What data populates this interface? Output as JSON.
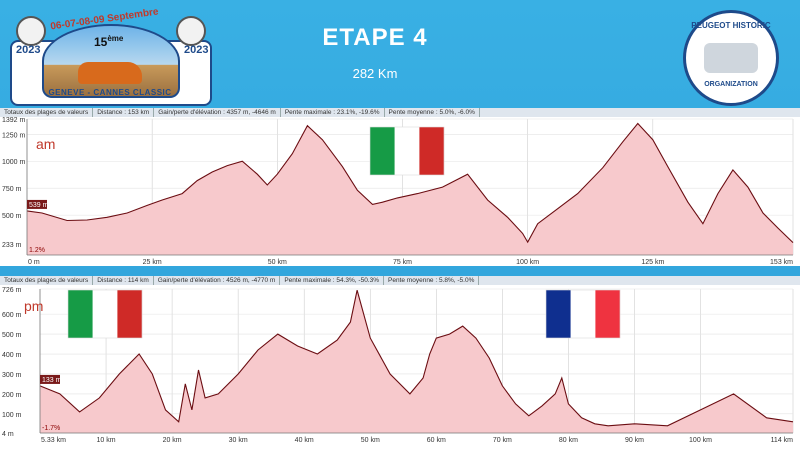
{
  "page": {
    "title": "ETAPE 4",
    "subtitle": "282 Km"
  },
  "logo_left": {
    "dates": "06-07-08-09 Septembre",
    "edition": "15",
    "edition_suffix": "ème",
    "year": "2023",
    "route": "GENEVE - CANNES CLASSIC"
  },
  "logo_right": {
    "top_text": "PEUGEOT HISTORIC",
    "bottom_text": "ORGANIZATION"
  },
  "colors": {
    "profile_line": "#6b0d12",
    "profile_fill": "#f7c9cc",
    "flag_green": "#169b46",
    "flag_white": "#ffffff",
    "flag_red": "#cf2a27",
    "flag_blue": "#0f2f8f",
    "flag_fr_red": "#ef3340"
  },
  "chart_data": [
    {
      "type": "area",
      "label": "am",
      "stats": [
        "Totaux des plages de valeurs",
        "Distance : 153 km",
        "Gain/perte d'élévation : 4357 m, -4646 m",
        "Pente maximale : 23.1%, -19.6%",
        "Pente moyenne : 5.0%, -6.0%"
      ],
      "x_unit": "km",
      "xlim": [
        0,
        153
      ],
      "ylim": [
        130,
        1392
      ],
      "y_ticks": [
        "1392 m",
        "1250 m",
        "1000 m",
        "750 m",
        "500 m",
        "233 m"
      ],
      "y_tick_values": [
        1392,
        1250,
        1000,
        750,
        500,
        233
      ],
      "x_ticks": [
        "0 m",
        "25 km",
        "50 km",
        "75 km",
        "100 km",
        "125 km",
        "153 km"
      ],
      "x_tick_values": [
        0,
        25,
        50,
        75,
        100,
        125,
        153
      ],
      "start_marker": "539 m",
      "slope_marker": "1.2%",
      "flags": [
        "italy"
      ],
      "x": [
        0,
        3,
        8,
        12,
        16,
        20,
        24,
        27,
        31,
        34,
        37,
        40,
        43,
        46,
        48,
        50,
        53,
        56,
        59,
        63,
        66,
        69,
        71,
        74,
        78,
        83,
        88,
        92,
        96,
        99,
        100,
        102,
        106,
        110,
        115,
        119,
        122,
        125,
        128,
        132,
        135,
        138,
        141,
        144,
        147,
        150,
        153
      ],
      "y": [
        539,
        520,
        450,
        455,
        480,
        520,
        590,
        640,
        700,
        820,
        900,
        960,
        1000,
        880,
        780,
        880,
        1070,
        1330,
        1200,
        950,
        730,
        600,
        620,
        660,
        700,
        760,
        880,
        640,
        480,
        330,
        250,
        420,
        560,
        700,
        940,
        1180,
        1350,
        1200,
        950,
        620,
        420,
        700,
        920,
        760,
        520,
        380,
        245
      ]
    },
    {
      "type": "area",
      "label": "pm",
      "stats": [
        "Totaux des plages de valeurs",
        "Distance : 114 km",
        "Gain/perte d'élévation : 4526 m, -4770 m",
        "Pente maximale : 54.3%, -50.3%",
        "Pente moyenne : 5.8%, -5.0%"
      ],
      "x_unit": "km",
      "xlim": [
        0,
        114
      ],
      "ylim": [
        4,
        726
      ],
      "y_ticks": [
        "726 m",
        "600 m",
        "500 m",
        "400 m",
        "300 m",
        "200 m",
        "100 m",
        "4 m"
      ],
      "y_tick_values": [
        726,
        600,
        500,
        400,
        300,
        200,
        100,
        4
      ],
      "x_ticks": [
        "5.33 km",
        "10 km",
        "20 km",
        "30 km",
        "40 km",
        "50 km",
        "60 km",
        "70 km",
        "80 km",
        "90 km",
        "100 km",
        "114 km"
      ],
      "x_tick_values": [
        5.33,
        10,
        20,
        30,
        40,
        50,
        60,
        70,
        80,
        90,
        100,
        114
      ],
      "start_marker": "133 m",
      "slope_marker": "-1.7%",
      "flags": [
        "italy",
        "france"
      ],
      "x": [
        0,
        3,
        6,
        9,
        12,
        15,
        17,
        19,
        21,
        22,
        23,
        24,
        25,
        27,
        30,
        33,
        36,
        39,
        42,
        45,
        47,
        48,
        50,
        53,
        56,
        58,
        59,
        60,
        62,
        64,
        66,
        68,
        70,
        72,
        74,
        76,
        78,
        79,
        80,
        82,
        84,
        86,
        90,
        95,
        100,
        105,
        110,
        114
      ],
      "y": [
        240,
        200,
        110,
        180,
        300,
        400,
        300,
        120,
        60,
        250,
        120,
        320,
        180,
        200,
        300,
        420,
        500,
        440,
        400,
        470,
        560,
        720,
        480,
        300,
        200,
        280,
        400,
        480,
        500,
        540,
        480,
        380,
        240,
        150,
        90,
        140,
        200,
        280,
        150,
        80,
        50,
        40,
        50,
        40,
        120,
        200,
        80,
        60
      ]
    }
  ]
}
